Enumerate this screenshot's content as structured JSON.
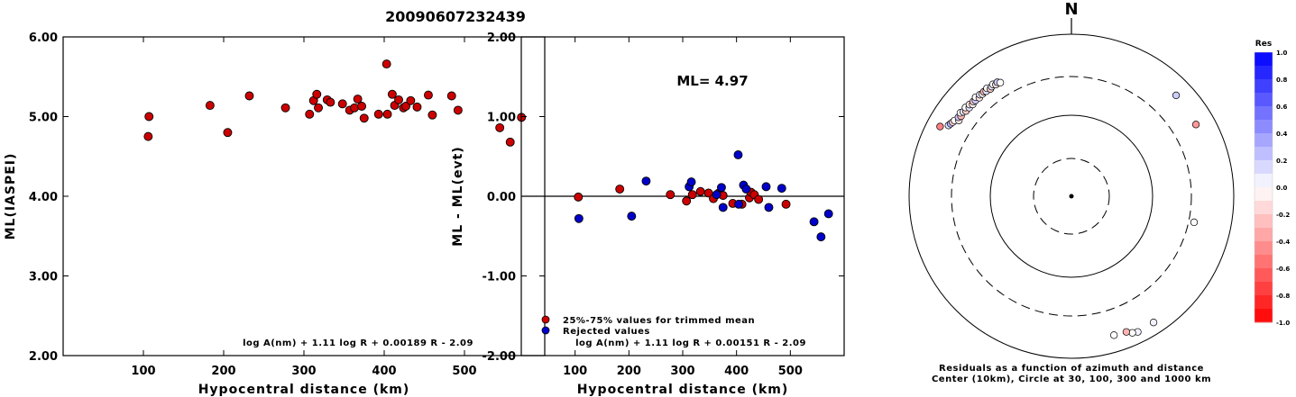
{
  "title": "20090607232439",
  "colors": {
    "red": "#cc0000",
    "blue": "#0000cc",
    "axis": "#000000"
  },
  "chart_data": [
    {
      "type": "scatter",
      "xlabel": "Hypocentral distance (km)",
      "ylabel": "ML(IASPEI)",
      "xlim": [
        0,
        600
      ],
      "ylim": [
        2.0,
        6.0
      ],
      "xticks": [
        100,
        200,
        300,
        400,
        500
      ],
      "yticks": [
        2.0,
        3.0,
        4.0,
        5.0,
        6.0
      ],
      "ytick_labels": [
        "2.00",
        "3.00",
        "4.00",
        "5.00",
        "6.00"
      ],
      "formula": "log A(nm) + 1.11 log R + 0.00189 R - 2.09",
      "series": [
        {
          "color": "red",
          "x": [
            106,
            107,
            183,
            205,
            232,
            277,
            307,
            312,
            316,
            318,
            329,
            333,
            348,
            357,
            363,
            367,
            372,
            375,
            393,
            403,
            404,
            410,
            413,
            418,
            424,
            427,
            433,
            441,
            455,
            460,
            484,
            492,
            544,
            557,
            571
          ],
          "y": [
            4.75,
            5.0,
            5.14,
            4.8,
            5.26,
            5.11,
            5.03,
            5.2,
            5.28,
            5.11,
            5.21,
            5.18,
            5.16,
            5.08,
            5.11,
            5.22,
            5.13,
            4.98,
            5.03,
            5.66,
            5.03,
            5.28,
            5.14,
            5.21,
            5.11,
            5.13,
            5.2,
            5.12,
            5.27,
            5.02,
            5.26,
            5.08,
            4.86,
            4.68,
            4.99
          ]
        }
      ]
    },
    {
      "type": "scatter",
      "xlabel": "Hypocentral distance (km)",
      "ylabel": "ML - ML(evt)",
      "xlim": [
        0,
        600
      ],
      "ylim": [
        -2.0,
        2.0
      ],
      "xticks": [
        100,
        200,
        300,
        400,
        500
      ],
      "yticks": [
        -2.0,
        -1.0,
        0.0,
        1.0,
        2.0
      ],
      "ytick_labels": [
        "-2.00",
        "-1.00",
        "0.00",
        "1.00",
        "2.00"
      ],
      "annotation": "ML= 4.97",
      "formula": "log A(nm) + 1.11 log R + 0.00151 R - 2.09",
      "legend": [
        "25%-75% values for trimmed mean",
        "Rejected values"
      ],
      "series": [
        {
          "name": "25%-75% values for trimmed mean",
          "color": "red",
          "x": [
            106,
            183,
            277,
            307,
            318,
            333,
            348,
            357,
            367,
            375,
            393,
            410,
            424,
            427,
            433,
            441,
            492
          ],
          "y": [
            -0.01,
            0.09,
            0.02,
            -0.06,
            0.02,
            0.06,
            0.04,
            -0.03,
            0.04,
            0.01,
            -0.09,
            -0.1,
            -0.02,
            0.05,
            0.02,
            -0.04,
            -0.1
          ]
        },
        {
          "name": "Rejected values",
          "color": "blue",
          "x": [
            107,
            205,
            232,
            312,
            316,
            363,
            372,
            375,
            403,
            404,
            413,
            418,
            455,
            460,
            484,
            544,
            557,
            571
          ],
          "y": [
            -0.28,
            -0.25,
            0.19,
            0.12,
            0.18,
            0.02,
            0.11,
            -0.14,
            0.52,
            -0.1,
            0.14,
            0.09,
            0.12,
            -0.14,
            0.1,
            -0.32,
            -0.51,
            -0.22
          ]
        }
      ]
    },
    {
      "type": "scatter",
      "subtype": "polar",
      "north_label": "N",
      "caption_line1": "Residuals as a function of azimuth and distance",
      "caption_line2": "Center (10km), Circle at 30, 100, 300 and 1000 km",
      "rings_km": [
        30,
        100,
        300,
        1000
      ],
      "colorbar": {
        "title": "Res",
        "range": [
          -1.0,
          1.0
        ],
        "tick_labels": [
          "1.0",
          "0.8",
          "0.6",
          "0.4",
          "0.2",
          "0.0",
          "-0.2",
          "-0.4",
          "-0.6",
          "-0.8",
          "-1.0"
        ]
      },
      "points": {
        "azimuth_deg": [
          300,
          301,
          302,
          303,
          304,
          305,
          306,
          307,
          308,
          309,
          310,
          311,
          312,
          313,
          314,
          315,
          316,
          317,
          318,
          319,
          320,
          321,
          322,
          323,
          324,
          325,
          326,
          327,
          328,
          298,
          46,
          60,
          102,
          147,
          154,
          156,
          158,
          163
        ],
        "distance_km": [
          560,
          545,
          530,
          520,
          470,
          500,
          480,
          515,
          490,
          470,
          505,
          465,
          490,
          460,
          480,
          470,
          500,
          460,
          485,
          470,
          480,
          465,
          490,
          455,
          470,
          485,
          460,
          475,
          450,
          680,
          620,
          590,
          350,
          720,
          730,
          700,
          640,
          620
        ],
        "residual": [
          0.1,
          0.3,
          -0.2,
          0.0,
          -0.1,
          0.2,
          -0.3,
          0.0,
          0.1,
          -0.2,
          0.0,
          0.1,
          -0.1,
          0.0,
          -0.2,
          0.2,
          0.0,
          -0.1,
          0.1,
          0.0,
          -0.3,
          0.1,
          0.0,
          -0.2,
          0.1,
          0.0,
          -0.1,
          0.2,
          0.0,
          -0.5,
          0.2,
          -0.4,
          0.0,
          0.05,
          0.05,
          0.0,
          -0.3,
          0.0
        ]
      }
    }
  ]
}
